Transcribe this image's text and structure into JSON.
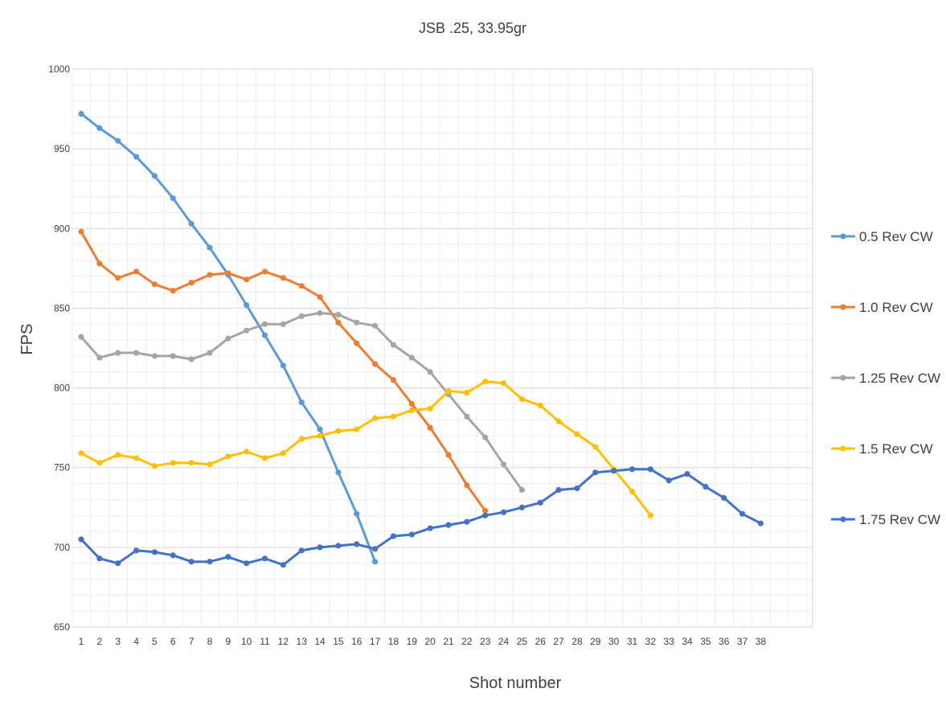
{
  "chart_data": {
    "type": "line",
    "title": "JSB .25, 33.95gr",
    "xlabel": "Shot number",
    "ylabel": "FPS",
    "xlim": [
      1,
      38
    ],
    "x_ticks": [
      1,
      2,
      3,
      4,
      5,
      6,
      7,
      8,
      9,
      10,
      11,
      12,
      13,
      14,
      15,
      16,
      17,
      18,
      19,
      20,
      21,
      22,
      23,
      24,
      25,
      26,
      27,
      28,
      29,
      30,
      31,
      32,
      33,
      34,
      35,
      36,
      37,
      38
    ],
    "ylim": [
      650,
      1000
    ],
    "y_ticks": [
      650,
      700,
      750,
      800,
      850,
      900,
      950,
      1000
    ],
    "grid": true,
    "legend_position": "right",
    "series": [
      {
        "name": "0.5 Rev CW",
        "color": "#5b9bd5",
        "x": [
          1,
          2,
          3,
          4,
          5,
          6,
          7,
          8,
          9,
          10,
          11,
          12,
          13,
          14,
          15,
          16,
          17
        ],
        "values": [
          972,
          963,
          955,
          945,
          933,
          919,
          903,
          888,
          871,
          852,
          833,
          814,
          791,
          774,
          747,
          721,
          691
        ]
      },
      {
        "name": "1.0 Rev CW",
        "color": "#ed7d31",
        "x": [
          1,
          2,
          3,
          4,
          5,
          6,
          7,
          8,
          9,
          10,
          11,
          12,
          13,
          14,
          15,
          16,
          17,
          18,
          19,
          20,
          21,
          22,
          23
        ],
        "values": [
          898,
          878,
          869,
          873,
          865,
          861,
          866,
          871,
          872,
          868,
          873,
          869,
          864,
          857,
          841,
          828,
          815,
          805,
          790,
          775,
          758,
          739,
          723
        ]
      },
      {
        "name": "1.25 Rev CW",
        "color": "#a5a5a5",
        "x": [
          1,
          2,
          3,
          4,
          5,
          6,
          7,
          8,
          9,
          10,
          11,
          12,
          13,
          14,
          15,
          16,
          17,
          18,
          19,
          20,
          21,
          22,
          23,
          24,
          25
        ],
        "values": [
          832,
          819,
          822,
          822,
          820,
          820,
          818,
          822,
          831,
          836,
          840,
          840,
          845,
          847,
          846,
          841,
          839,
          827,
          819,
          810,
          796,
          782,
          769,
          752,
          736
        ]
      },
      {
        "name": "1.5 Rev CW",
        "color": "#ffc000",
        "x": [
          1,
          2,
          3,
          4,
          5,
          6,
          7,
          8,
          9,
          10,
          11,
          12,
          13,
          14,
          15,
          16,
          17,
          18,
          19,
          20,
          21,
          22,
          23,
          24,
          25,
          26,
          27,
          28,
          29,
          30,
          31,
          32
        ],
        "values": [
          759,
          753,
          758,
          756,
          751,
          753,
          753,
          752,
          757,
          760,
          756,
          759,
          768,
          770,
          773,
          774,
          781,
          782,
          786,
          787,
          798,
          797,
          804,
          803,
          793,
          789,
          779,
          771,
          763,
          749,
          735,
          720
        ]
      },
      {
        "name": "1.75 Rev CW",
        "color": "#4472c4",
        "x": [
          1,
          2,
          3,
          4,
          5,
          6,
          7,
          8,
          9,
          10,
          11,
          12,
          13,
          14,
          15,
          16,
          17,
          18,
          19,
          20,
          21,
          22,
          23,
          24,
          25,
          26,
          27,
          28,
          29,
          30,
          31,
          32,
          33,
          34,
          35,
          36,
          37,
          38
        ],
        "values": [
          705,
          693,
          690,
          698,
          697,
          695,
          691,
          691,
          694,
          690,
          693,
          689,
          698,
          700,
          701,
          702,
          699,
          707,
          708,
          712,
          714,
          716,
          720,
          722,
          725,
          728,
          736,
          737,
          747,
          748,
          749,
          749,
          742,
          746,
          738,
          731,
          721,
          715
        ]
      }
    ]
  }
}
